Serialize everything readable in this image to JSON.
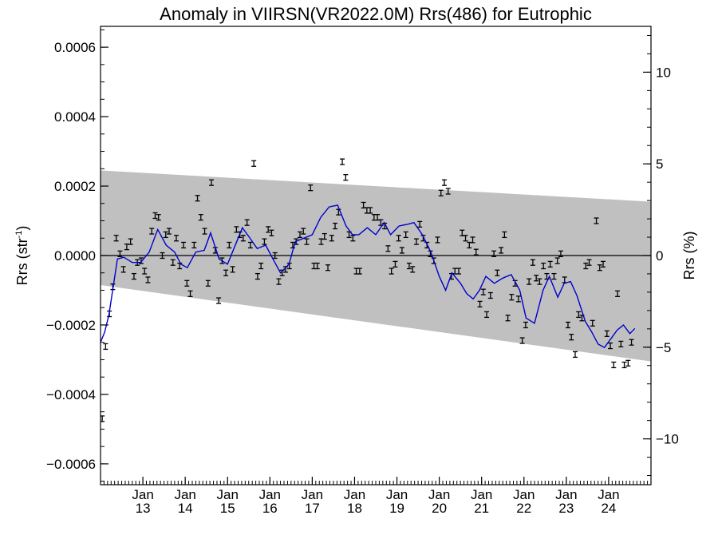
{
  "chart_data": {
    "type": "scatter",
    "title": "Anomaly in VIIRSN(VR2022.0M) Rrs(486) for Eutrophic",
    "ylabel_left": "Rrs (str",
    "ylabel_left_sup": "-1",
    "ylabel_left_close": ")",
    "ylabel_right": "Rrs (%)",
    "xlim": [
      2012.0,
      2025.0
    ],
    "ylim": [
      -0.00066,
      0.00066
    ],
    "ylim_right_percent": [
      -12.5,
      12.5
    ],
    "x_ticks": [
      {
        "x": 2013.0,
        "month": "Jan",
        "year": "13"
      },
      {
        "x": 2014.0,
        "month": "Jan",
        "year": "14"
      },
      {
        "x": 2015.0,
        "month": "Jan",
        "year": "15"
      },
      {
        "x": 2016.0,
        "month": "Jan",
        "year": "16"
      },
      {
        "x": 2017.0,
        "month": "Jan",
        "year": "17"
      },
      {
        "x": 2018.0,
        "month": "Jan",
        "year": "18"
      },
      {
        "x": 2019.0,
        "month": "Jan",
        "year": "19"
      },
      {
        "x": 2020.0,
        "month": "Jan",
        "year": "20"
      },
      {
        "x": 2021.0,
        "month": "Jan",
        "year": "21"
      },
      {
        "x": 2022.0,
        "month": "Jan",
        "year": "22"
      },
      {
        "x": 2023.0,
        "month": "Jan",
        "year": "23"
      },
      {
        "x": 2024.0,
        "month": "Jan",
        "year": "24"
      }
    ],
    "y_ticks_left": [
      {
        "v": 0.0006,
        "label": "0.0006"
      },
      {
        "v": 0.0004,
        "label": "0.0004"
      },
      {
        "v": 0.0002,
        "label": "0.0002"
      },
      {
        "v": 0.0,
        "label": "0.0000"
      },
      {
        "v": -0.0002,
        "label": "−0.0002"
      },
      {
        "v": -0.0004,
        "label": "−0.0004"
      },
      {
        "v": -0.0006,
        "label": "−0.0006"
      }
    ],
    "y_ticks_right": [
      {
        "v": 10,
        "label": "10"
      },
      {
        "v": 5,
        "label": "5"
      },
      {
        "v": 0,
        "label": "0"
      },
      {
        "v": -5,
        "label": "−5"
      },
      {
        "v": -10,
        "label": "−10"
      }
    ],
    "grid": false,
    "colors": {
      "band": "#c0c0c0",
      "line": "#0000cc",
      "points": "#000000",
      "zero_line": "#000000"
    },
    "band": {
      "x": [
        2012.0,
        2025.0
      ],
      "upper": [
        0.000245,
        0.000155
      ],
      "lower": [
        -8.5e-05,
        -0.000305
      ]
    },
    "zero_line": 0.0,
    "error_bar_half_width": 8e-06,
    "points": [
      {
        "x": 2012.04,
        "y": -0.00047
      },
      {
        "x": 2012.12,
        "y": -0.000262
      },
      {
        "x": 2012.21,
        "y": -0.000168
      },
      {
        "x": 2012.29,
        "y": -9e-05
      },
      {
        "x": 2012.37,
        "y": 5e-05
      },
      {
        "x": 2012.46,
        "y": 5e-06
      },
      {
        "x": 2012.54,
        "y": -4e-05
      },
      {
        "x": 2012.62,
        "y": 2.5e-05
      },
      {
        "x": 2012.71,
        "y": 4e-05
      },
      {
        "x": 2012.79,
        "y": -6e-05
      },
      {
        "x": 2012.87,
        "y": -2e-05
      },
      {
        "x": 2012.96,
        "y": -1.5e-05
      },
      {
        "x": 2013.04,
        "y": -4.5e-05
      },
      {
        "x": 2013.12,
        "y": -7e-05
      },
      {
        "x": 2013.21,
        "y": 7e-05
      },
      {
        "x": 2013.29,
        "y": 0.000115
      },
      {
        "x": 2013.37,
        "y": 0.00011
      },
      {
        "x": 2013.46,
        "y": 0.0
      },
      {
        "x": 2013.54,
        "y": 6e-05
      },
      {
        "x": 2013.62,
        "y": 7e-05
      },
      {
        "x": 2013.71,
        "y": -2e-05
      },
      {
        "x": 2013.79,
        "y": 5e-05
      },
      {
        "x": 2013.87,
        "y": -3e-05
      },
      {
        "x": 2013.96,
        "y": 3e-05
      },
      {
        "x": 2014.04,
        "y": -8e-05
      },
      {
        "x": 2014.12,
        "y": -0.00011
      },
      {
        "x": 2014.21,
        "y": 3e-05
      },
      {
        "x": 2014.29,
        "y": 0.000165
      },
      {
        "x": 2014.37,
        "y": 0.00011
      },
      {
        "x": 2014.46,
        "y": 7e-05
      },
      {
        "x": 2014.54,
        "y": -8e-05
      },
      {
        "x": 2014.62,
        "y": 0.00021
      },
      {
        "x": 2014.71,
        "y": 1.5e-05
      },
      {
        "x": 2014.79,
        "y": -0.00013
      },
      {
        "x": 2014.87,
        "y": -1.5e-05
      },
      {
        "x": 2014.96,
        "y": -5e-05
      },
      {
        "x": 2015.04,
        "y": 3e-05
      },
      {
        "x": 2015.12,
        "y": -4e-05
      },
      {
        "x": 2015.21,
        "y": 7.5e-05
      },
      {
        "x": 2015.29,
        "y": 6e-05
      },
      {
        "x": 2015.37,
        "y": 5e-05
      },
      {
        "x": 2015.46,
        "y": 9.5e-05
      },
      {
        "x": 2015.54,
        "y": 3e-05
      },
      {
        "x": 2015.62,
        "y": 0.000265
      },
      {
        "x": 2015.71,
        "y": -6e-05
      },
      {
        "x": 2015.79,
        "y": -3e-05
      },
      {
        "x": 2015.87,
        "y": 4e-05
      },
      {
        "x": 2015.96,
        "y": 7.5e-05
      },
      {
        "x": 2016.04,
        "y": 6.5e-05
      },
      {
        "x": 2016.12,
        "y": 0.0
      },
      {
        "x": 2016.21,
        "y": -7.5e-05
      },
      {
        "x": 2016.29,
        "y": -5e-05
      },
      {
        "x": 2016.37,
        "y": -4e-05
      },
      {
        "x": 2016.46,
        "y": -3e-05
      },
      {
        "x": 2016.54,
        "y": 3e-05
      },
      {
        "x": 2016.62,
        "y": 4e-05
      },
      {
        "x": 2016.71,
        "y": 6e-05
      },
      {
        "x": 2016.79,
        "y": 7e-05
      },
      {
        "x": 2016.87,
        "y": 4e-05
      },
      {
        "x": 2016.96,
        "y": 0.000195
      },
      {
        "x": 2017.04,
        "y": -3e-05
      },
      {
        "x": 2017.12,
        "y": -3e-05
      },
      {
        "x": 2017.21,
        "y": 4e-05
      },
      {
        "x": 2017.29,
        "y": 5.5e-05
      },
      {
        "x": 2017.37,
        "y": -3.5e-05
      },
      {
        "x": 2017.46,
        "y": 5e-05
      },
      {
        "x": 2017.54,
        "y": 8.5e-05
      },
      {
        "x": 2017.62,
        "y": 0.000125
      },
      {
        "x": 2017.71,
        "y": 0.00027
      },
      {
        "x": 2017.79,
        "y": 0.000225
      },
      {
        "x": 2017.87,
        "y": 6e-05
      },
      {
        "x": 2017.96,
        "y": 5e-05
      },
      {
        "x": 2018.04,
        "y": -4.5e-05
      },
      {
        "x": 2018.12,
        "y": -4.5e-05
      },
      {
        "x": 2018.21,
        "y": 0.000145
      },
      {
        "x": 2018.29,
        "y": 0.00013
      },
      {
        "x": 2018.37,
        "y": 0.00013
      },
      {
        "x": 2018.46,
        "y": 0.00011
      },
      {
        "x": 2018.54,
        "y": 0.00011
      },
      {
        "x": 2018.62,
        "y": 9.5e-05
      },
      {
        "x": 2018.71,
        "y": 8.5e-05
      },
      {
        "x": 2018.79,
        "y": 2e-05
      },
      {
        "x": 2018.87,
        "y": -4.5e-05
      },
      {
        "x": 2018.96,
        "y": -2.5e-05
      },
      {
        "x": 2019.04,
        "y": 5e-05
      },
      {
        "x": 2019.12,
        "y": 1.5e-05
      },
      {
        "x": 2019.21,
        "y": 6e-05
      },
      {
        "x": 2019.29,
        "y": -3e-05
      },
      {
        "x": 2019.37,
        "y": -4e-05
      },
      {
        "x": 2019.46,
        "y": 4e-05
      },
      {
        "x": 2019.54,
        "y": 9e-05
      },
      {
        "x": 2019.62,
        "y": 5e-05
      },
      {
        "x": 2019.71,
        "y": 3e-05
      },
      {
        "x": 2019.79,
        "y": 5e-06
      },
      {
        "x": 2019.87,
        "y": -1.5e-05
      },
      {
        "x": 2019.96,
        "y": 4.5e-05
      },
      {
        "x": 2020.04,
        "y": 0.00018
      },
      {
        "x": 2020.12,
        "y": 0.00021
      },
      {
        "x": 2020.21,
        "y": 0.000185
      },
      {
        "x": 2020.29,
        "y": -6e-05
      },
      {
        "x": 2020.37,
        "y": -4.5e-05
      },
      {
        "x": 2020.46,
        "y": -4.5e-05
      },
      {
        "x": 2020.54,
        "y": 6.5e-05
      },
      {
        "x": 2020.62,
        "y": 5e-05
      },
      {
        "x": 2020.71,
        "y": 3e-05
      },
      {
        "x": 2020.79,
        "y": 4.5e-05
      },
      {
        "x": 2020.87,
        "y": 1e-05
      },
      {
        "x": 2020.96,
        "y": -0.00014
      },
      {
        "x": 2021.04,
        "y": -0.000105
      },
      {
        "x": 2021.12,
        "y": -0.00017
      },
      {
        "x": 2021.21,
        "y": -0.000115
      },
      {
        "x": 2021.29,
        "y": 5e-06
      },
      {
        "x": 2021.37,
        "y": -5e-05
      },
      {
        "x": 2021.46,
        "y": 1.5e-05
      },
      {
        "x": 2021.54,
        "y": 6e-05
      },
      {
        "x": 2021.62,
        "y": -0.00018
      },
      {
        "x": 2021.71,
        "y": -0.00012
      },
      {
        "x": 2021.79,
        "y": -8e-05
      },
      {
        "x": 2021.87,
        "y": -0.000125
      },
      {
        "x": 2021.96,
        "y": -0.000245
      },
      {
        "x": 2022.04,
        "y": -0.0002
      },
      {
        "x": 2022.12,
        "y": -7.5e-05
      },
      {
        "x": 2022.21,
        "y": -2e-05
      },
      {
        "x": 2022.29,
        "y": -6.5e-05
      },
      {
        "x": 2022.37,
        "y": -7.5e-05
      },
      {
        "x": 2022.46,
        "y": -3e-05
      },
      {
        "x": 2022.54,
        "y": -6e-05
      },
      {
        "x": 2022.62,
        "y": -2.5e-05
      },
      {
        "x": 2022.71,
        "y": -6e-05
      },
      {
        "x": 2022.79,
        "y": -1.5e-05
      },
      {
        "x": 2022.87,
        "y": 5e-06
      },
      {
        "x": 2022.96,
        "y": -7e-05
      },
      {
        "x": 2023.04,
        "y": -0.0002
      },
      {
        "x": 2023.12,
        "y": -0.000235
      },
      {
        "x": 2023.21,
        "y": -0.000285
      },
      {
        "x": 2023.29,
        "y": -0.00017
      },
      {
        "x": 2023.37,
        "y": -0.00018
      },
      {
        "x": 2023.46,
        "y": -3e-05
      },
      {
        "x": 2023.54,
        "y": -2e-05
      },
      {
        "x": 2023.62,
        "y": -0.000195
      },
      {
        "x": 2023.71,
        "y": 0.0001
      },
      {
        "x": 2023.79,
        "y": -3.5e-05
      },
      {
        "x": 2023.87,
        "y": -2.5e-05
      },
      {
        "x": 2023.96,
        "y": -0.000225
      },
      {
        "x": 2024.04,
        "y": -0.00026
      },
      {
        "x": 2024.12,
        "y": -0.000315
      },
      {
        "x": 2024.21,
        "y": -0.00011
      },
      {
        "x": 2024.29,
        "y": -0.000255
      },
      {
        "x": 2024.37,
        "y": -0.000315
      },
      {
        "x": 2024.46,
        "y": -0.00031
      },
      {
        "x": 2024.54,
        "y": -0.00025
      }
    ],
    "smoothed": {
      "name": "",
      "x": [
        2012.0,
        2012.1,
        2012.2,
        2012.3,
        2012.4,
        2012.55,
        2012.75,
        2012.95,
        2013.15,
        2013.35,
        2013.55,
        2013.75,
        2013.9,
        2014.05,
        2014.25,
        2014.45,
        2014.6,
        2014.8,
        2015.0,
        2015.15,
        2015.35,
        2015.5,
        2015.7,
        2015.9,
        2016.05,
        2016.25,
        2016.45,
        2016.6,
        2016.8,
        2017.0,
        2017.2,
        2017.4,
        2017.6,
        2017.8,
        2017.95,
        2018.1,
        2018.3,
        2018.5,
        2018.7,
        2018.85,
        2019.05,
        2019.25,
        2019.4,
        2019.6,
        2019.8,
        2020.0,
        2020.15,
        2020.3,
        2020.5,
        2020.65,
        2020.8,
        2020.95,
        2021.1,
        2021.3,
        2021.5,
        2021.7,
        2021.9,
        2022.05,
        2022.25,
        2022.45,
        2022.6,
        2022.8,
        2022.95,
        2023.1,
        2023.25,
        2023.45,
        2023.6,
        2023.75,
        2023.9,
        2024.05,
        2024.2,
        2024.35,
        2024.5,
        2024.62
      ],
      "y": [
        -0.00025,
        -0.00022,
        -0.00017,
        -9e-05,
        -1e-05,
        -5e-06,
        -2e-05,
        -2e-05,
        1e-05,
        7.5e-05,
        3e-05,
        1e-05,
        -2.5e-05,
        -3.5e-05,
        1e-05,
        1.5e-05,
        6.5e-05,
        -1e-05,
        -2.5e-05,
        2e-05,
        8e-05,
        5.5e-05,
        2e-05,
        3e-05,
        -5e-06,
        -5e-05,
        -2.5e-05,
        4e-05,
        5e-05,
        6e-05,
        0.00011,
        0.00014,
        0.000145,
        8.5e-05,
        6e-05,
        6e-05,
        8e-05,
        6e-05,
        9.5e-05,
        6e-05,
        8.5e-05,
        9e-05,
        9.5e-05,
        6e-05,
        1e-05,
        -6e-05,
        -0.0001,
        -5e-05,
        -8e-05,
        -0.00011,
        -0.000125,
        -0.0001,
        -6e-05,
        -8e-05,
        -6.5e-05,
        -5.5e-05,
        -0.0001,
        -0.00018,
        -0.000195,
        -0.0001,
        -6e-05,
        -0.00012,
        -8e-05,
        -7.5e-05,
        -0.000115,
        -0.00019,
        -0.00022,
        -0.000255,
        -0.000265,
        -0.00024,
        -0.000215,
        -0.0002,
        -0.000225,
        -0.00021
      ]
    }
  }
}
